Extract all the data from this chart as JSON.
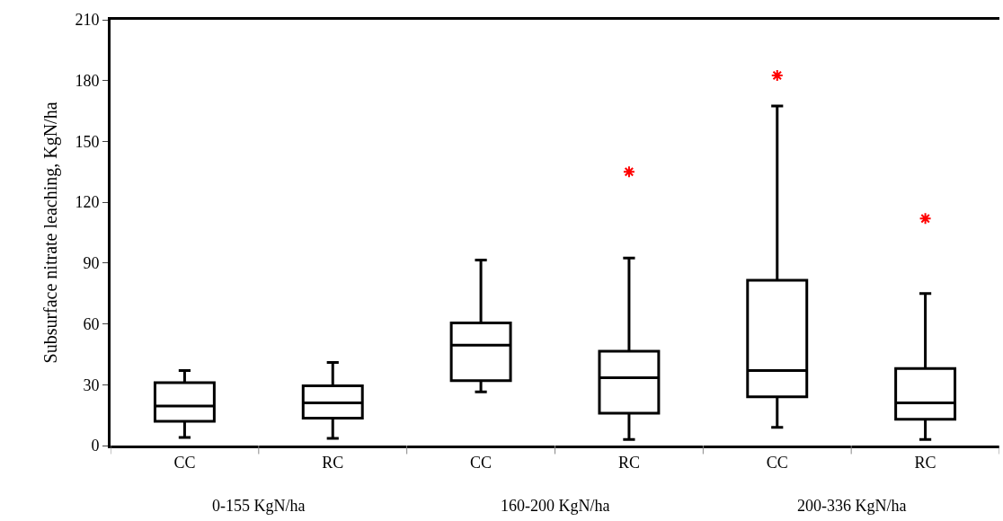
{
  "chart_data": {
    "type": "box",
    "ylabel": "Subsurface nitrate leaching, KgN/ha",
    "categories": [
      "CC",
      "RC",
      "CC",
      "RC",
      "CC",
      "RC"
    ],
    "annotations": [
      "0-155 KgN/ha",
      "160-200 KgN/ha",
      "200-336 KgN/ha"
    ],
    "ylim": [
      0,
      210
    ],
    "yticks": [
      0,
      30,
      60,
      90,
      120,
      150,
      180,
      210
    ],
    "series": [
      {
        "color": "#000000",
        "boxes": [
          {
            "low": 4,
            "q1": 12,
            "median": 19.5,
            "q3": 31,
            "high": 37
          },
          {
            "low": 3.5,
            "q1": 13.5,
            "median": 21,
            "q3": 29.5,
            "high": 41
          },
          {
            "low": 26.5,
            "q1": 32,
            "median": 49.5,
            "q3": 60.5,
            "high": 91.5
          },
          {
            "low": 3,
            "q1": 16,
            "median": 33.5,
            "q3": 46.5,
            "high": 92.5
          },
          {
            "low": 9,
            "q1": 24,
            "median": 37,
            "q3": 81.5,
            "high": 167.5
          },
          {
            "low": 3,
            "q1": 13,
            "median": 21,
            "q3": 38,
            "high": 75
          }
        ]
      },
      {
        "type": "scatter",
        "color": "#ff0000",
        "marker": "cross",
        "values": [
          null,
          null,
          null,
          135,
          182.5,
          112
        ]
      }
    ]
  }
}
